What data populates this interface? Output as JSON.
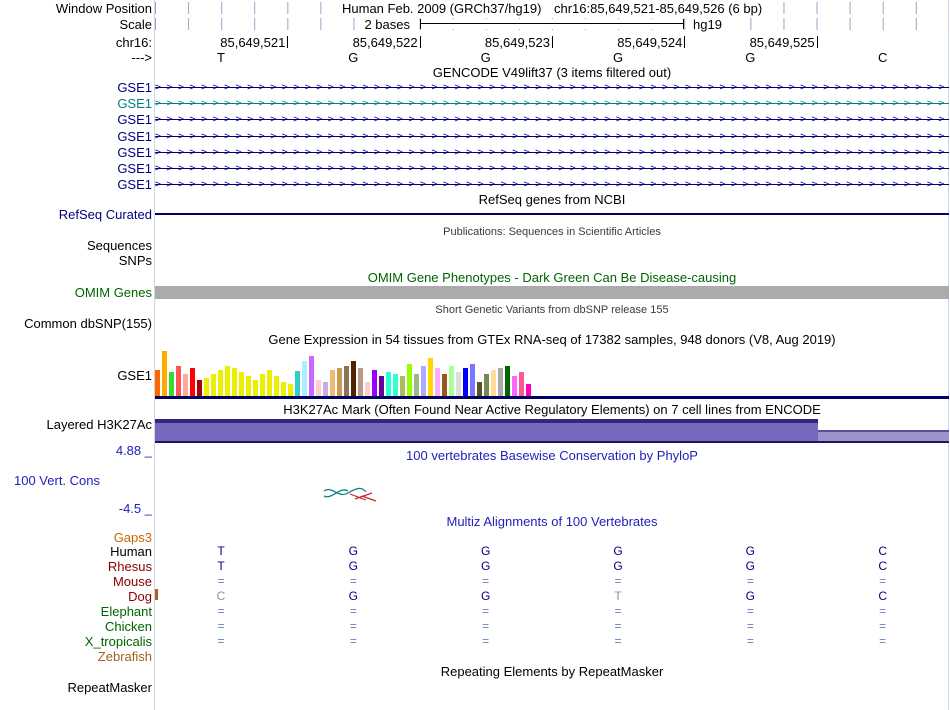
{
  "header": {
    "window_position_label": "Window Position",
    "assembly": "Human Feb. 2009 (GRCh37/hg19)",
    "position": "chr16:85,649,521-85,649,526 (6 bp)",
    "scale_label": "Scale",
    "scale_value": "2 bases",
    "scale_assembly": "hg19",
    "chrom_label": "chr16:",
    "strand_label": "--->"
  },
  "ruler": {
    "positions": [
      "85,649,521",
      "85,649,522",
      "85,649,523",
      "85,649,524",
      "85,649,525"
    ],
    "bases": [
      "T",
      "G",
      "G",
      "G",
      "G",
      "C"
    ]
  },
  "tracks": {
    "gencode": {
      "title": "GENCODE V49lift37 (3 items filtered out)",
      "items": [
        {
          "label": "GSE1",
          "color": "#000080"
        },
        {
          "label": "GSE1",
          "color": "#008080"
        },
        {
          "label": "GSE1",
          "color": "#000080"
        },
        {
          "label": "GSE1",
          "color": "#000080"
        },
        {
          "label": "GSE1",
          "color": "#000080"
        },
        {
          "label": "GSE1",
          "color": "#000080"
        },
        {
          "label": "GSE1",
          "color": "#000080"
        }
      ]
    },
    "refseq": {
      "label": "RefSeq Curated",
      "title": "RefSeq genes from NCBI"
    },
    "publications": {
      "title": "Publications: Sequences in Scientific Articles",
      "sequences_label": "Sequences",
      "snps_label": "SNPs"
    },
    "omim": {
      "title": "OMIM Gene Phenotypes - Dark Green Can Be Disease-causing",
      "label": "OMIM Genes"
    },
    "dbsnp": {
      "title": "Short Genetic Variants from dbSNP release 155",
      "label": "Common dbSNP(155)"
    },
    "gtex": {
      "title": "Gene Expression in 54 tissues from GTEx RNA-seq of 17382 samples, 948 donors (V8, Aug 2019)",
      "label": "GSE1"
    },
    "h3k27ac": {
      "title": "H3K27Ac Mark (Often Found Near Active Regulatory Elements) on 7 cell lines from ENCODE",
      "label": "Layered H3K27Ac"
    },
    "phylop": {
      "title": "100 vertebrates Basewise Conservation by PhyloP",
      "label": "100 Vert. Cons",
      "max_label": "4.88 _",
      "min_label": "-4.5 _"
    },
    "multiz": {
      "title": "Multiz Alignments of 100 Vertebrates",
      "gaps_label": "Gaps3",
      "species": [
        {
          "name": "Human",
          "color": "#000000",
          "cells": [
            {
              "t": "T"
            },
            {
              "t": "G"
            },
            {
              "t": "G"
            },
            {
              "t": "G"
            },
            {
              "t": "G"
            },
            {
              "t": "C"
            }
          ]
        },
        {
          "name": "Rhesus",
          "color": "#8B0000",
          "cells": [
            {
              "t": "T"
            },
            {
              "t": "G"
            },
            {
              "t": "G"
            },
            {
              "t": "G"
            },
            {
              "t": "G"
            },
            {
              "t": "C"
            }
          ]
        },
        {
          "name": "Mouse",
          "color": "#8B0000",
          "cells": [
            {
              "t": "=",
              "s": "eq"
            },
            {
              "t": "=",
              "s": "eq"
            },
            {
              "t": "=",
              "s": "eq"
            },
            {
              "t": "=",
              "s": "eq"
            },
            {
              "t": "=",
              "s": "eq"
            },
            {
              "t": "=",
              "s": "eq"
            }
          ]
        },
        {
          "name": "Dog",
          "color": "#8B0000",
          "cells": [
            {
              "t": "C",
              "s": "dim"
            },
            {
              "t": "G"
            },
            {
              "t": "G"
            },
            {
              "t": "T",
              "s": "dim"
            },
            {
              "t": "G"
            },
            {
              "t": "C"
            }
          ]
        },
        {
          "name": "Elephant",
          "color": "#006400",
          "cells": [
            {
              "t": "=",
              "s": "eq"
            },
            {
              "t": "=",
              "s": "eq"
            },
            {
              "t": "=",
              "s": "eq"
            },
            {
              "t": "=",
              "s": "eq"
            },
            {
              "t": "=",
              "s": "eq"
            },
            {
              "t": "=",
              "s": "eq"
            }
          ]
        },
        {
          "name": "Chicken",
          "color": "#006400",
          "cells": [
            {
              "t": "=",
              "s": "eq"
            },
            {
              "t": "=",
              "s": "eq"
            },
            {
              "t": "=",
              "s": "eq"
            },
            {
              "t": "=",
              "s": "eq"
            },
            {
              "t": "=",
              "s": "eq"
            },
            {
              "t": "=",
              "s": "eq"
            }
          ]
        },
        {
          "name": "X_tropicalis",
          "color": "#006400",
          "cells": [
            {
              "t": "=",
              "s": "eq"
            },
            {
              "t": "=",
              "s": "eq"
            },
            {
              "t": "=",
              "s": "eq"
            },
            {
              "t": "=",
              "s": "eq"
            },
            {
              "t": "=",
              "s": "eq"
            },
            {
              "t": "=",
              "s": "eq"
            }
          ]
        },
        {
          "name": "Zebrafish",
          "color": "#A0621D",
          "cells": [
            {
              "t": ""
            },
            {
              "t": ""
            },
            {
              "t": ""
            },
            {
              "t": ""
            },
            {
              "t": ""
            },
            {
              "t": ""
            }
          ]
        }
      ]
    },
    "repeatmasker": {
      "title": "Repeating Elements by RepeatMasker",
      "label": "RepeatMasker"
    }
  },
  "chart_data": {
    "type": "bar",
    "title": "Gene Expression in 54 tissues from GTEx RNA-seq of 17382 samples, 948 donors (V8, Aug 2019)",
    "gene": "GSE1",
    "note": "bar heights approximate relative expression, px",
    "bars": [
      {
        "color": "#FF6600",
        "h": 26
      },
      {
        "color": "#FFAA00",
        "h": 45
      },
      {
        "color": "#33DD33",
        "h": 24
      },
      {
        "color": "#FF5555",
        "h": 30
      },
      {
        "color": "#FFAA99",
        "h": 22
      },
      {
        "color": "#FF0000",
        "h": 28
      },
      {
        "color": "#AA0000",
        "h": 16
      },
      {
        "color": "#EEEE00",
        "h": 18
      },
      {
        "color": "#EEEE00",
        "h": 22
      },
      {
        "color": "#EEEE00",
        "h": 26
      },
      {
        "color": "#EEEE00",
        "h": 30
      },
      {
        "color": "#EEEE00",
        "h": 28
      },
      {
        "color": "#EEEE00",
        "h": 24
      },
      {
        "color": "#EEEE00",
        "h": 20
      },
      {
        "color": "#EEEE00",
        "h": 16
      },
      {
        "color": "#EEEE00",
        "h": 22
      },
      {
        "color": "#EEEE00",
        "h": 26
      },
      {
        "color": "#EEEE00",
        "h": 20
      },
      {
        "color": "#EEEE00",
        "h": 14
      },
      {
        "color": "#EEEE00",
        "h": 12
      },
      {
        "color": "#33CCCC",
        "h": 25
      },
      {
        "color": "#AAEEFF",
        "h": 35
      },
      {
        "color": "#CC66FF",
        "h": 40
      },
      {
        "color": "#FFCCCC",
        "h": 16
      },
      {
        "color": "#CCAADD",
        "h": 14
      },
      {
        "color": "#EEBB77",
        "h": 26
      },
      {
        "color": "#CC9955",
        "h": 28
      },
      {
        "color": "#8B7355",
        "h": 30
      },
      {
        "color": "#552200",
        "h": 35
      },
      {
        "color": "#BB9988",
        "h": 28
      },
      {
        "color": "#FFCCCC",
        "h": 14
      },
      {
        "color": "#9900FF",
        "h": 26
      },
      {
        "color": "#660099",
        "h": 20
      },
      {
        "color": "#22FFDD",
        "h": 24
      },
      {
        "color": "#33FFC9",
        "h": 22
      },
      {
        "color": "#AABB66",
        "h": 20
      },
      {
        "color": "#99FF00",
        "h": 32
      },
      {
        "color": "#99BB88",
        "h": 22
      },
      {
        "color": "#AAAAFF",
        "h": 30
      },
      {
        "color": "#FFD700",
        "h": 38
      },
      {
        "color": "#FFAAFF",
        "h": 28
      },
      {
        "color": "#995522",
        "h": 22
      },
      {
        "color": "#AAFF99",
        "h": 30
      },
      {
        "color": "#DDDDDD",
        "h": 24
      },
      {
        "color": "#0000FF",
        "h": 28
      },
      {
        "color": "#7777FF",
        "h": 32
      },
      {
        "color": "#555522",
        "h": 14
      },
      {
        "color": "#778855",
        "h": 22
      },
      {
        "color": "#FFDD99",
        "h": 26
      },
      {
        "color": "#AAAAAA",
        "h": 28
      },
      {
        "color": "#006600",
        "h": 30
      },
      {
        "color": "#FF66FF",
        "h": 20
      },
      {
        "color": "#FF5599",
        "h": 24
      },
      {
        "color": "#FF00BB",
        "h": 12
      }
    ]
  }
}
